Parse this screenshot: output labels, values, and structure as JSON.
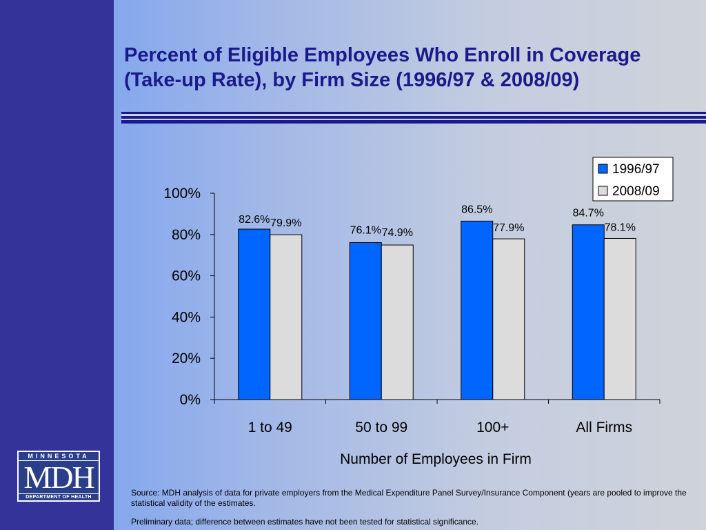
{
  "slide": {
    "title": "Percent of Eligible Employees Who Enroll in Coverage (Take-up Rate), by Firm Size (1996/97 & 2008/09)",
    "source": "Source: MDH analysis of data for private employers from the Medical Expenditure Panel Survey/Insurance Component (years are pooled to improve the statistical validity of the estimates.",
    "note": "Preliminary data; difference between estimates have not been tested for statistical significance."
  },
  "logo": {
    "top": "MINNESOTA",
    "main": "MDH",
    "bottom": "DEPARTMENT OF HEALTH"
  },
  "colors": {
    "sidebar": "#333399",
    "title": "#1a1a8c",
    "series_1996": "#0066ff",
    "series_2008": "#dcdcdc"
  },
  "chart_data": {
    "type": "bar",
    "categories": [
      "1 to 49",
      "50 to 99",
      "100+",
      "All Firms"
    ],
    "series": [
      {
        "name": "1996/97",
        "values": [
          82.6,
          76.1,
          86.5,
          84.7
        ],
        "labels": [
          "82.6%",
          "76.1%",
          "86.5%",
          "84.7%"
        ],
        "color": "#0066ff"
      },
      {
        "name": "2008/09",
        "values": [
          79.9,
          74.9,
          77.9,
          78.1
        ],
        "labels": [
          "79.9%",
          "74.9%",
          "77.9%",
          "78.1%"
        ],
        "color": "#dcdcdc"
      }
    ],
    "yticks": [
      "0%",
      "20%",
      "40%",
      "60%",
      "80%",
      "100%"
    ],
    "ylim": [
      0,
      100
    ],
    "xlabel": "Number of Employees in Firm",
    "ylabel": "",
    "legend": "top-right",
    "grid": false
  }
}
